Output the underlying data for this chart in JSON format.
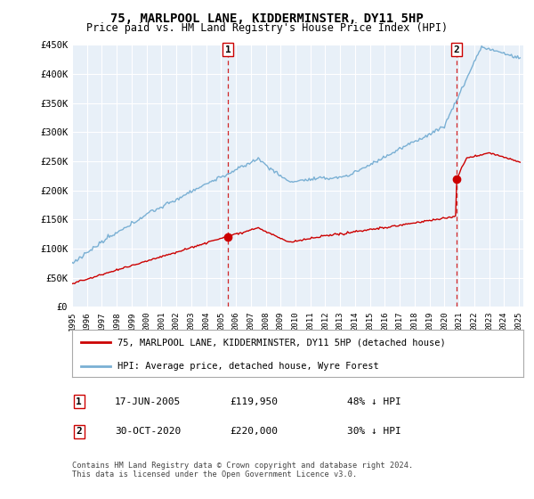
{
  "title": "75, MARLPOOL LANE, KIDDERMINSTER, DY11 5HP",
  "subtitle": "Price paid vs. HM Land Registry's House Price Index (HPI)",
  "ylim": [
    0,
    450000
  ],
  "yticks": [
    0,
    50000,
    100000,
    150000,
    200000,
    250000,
    300000,
    350000,
    400000,
    450000
  ],
  "sale1_date": "17-JUN-2005",
  "sale1_price": 119950,
  "sale1_note": "48% ↓ HPI",
  "sale1_year": 2005.46,
  "sale2_date": "30-OCT-2020",
  "sale2_price": 220000,
  "sale2_note": "30% ↓ HPI",
  "sale2_year": 2020.83,
  "red_line_color": "#cc0000",
  "blue_line_color": "#7ab0d4",
  "dashed_line_color": "#cc0000",
  "legend_label_red": "75, MARLPOOL LANE, KIDDERMINSTER, DY11 5HP (detached house)",
  "legend_label_blue": "HPI: Average price, detached house, Wyre Forest",
  "footnote": "Contains HM Land Registry data © Crown copyright and database right 2024.\nThis data is licensed under the Open Government Licence v3.0.",
  "background_color": "#ffffff",
  "plot_bg_color": "#e8f0f8",
  "grid_color": "#ffffff"
}
